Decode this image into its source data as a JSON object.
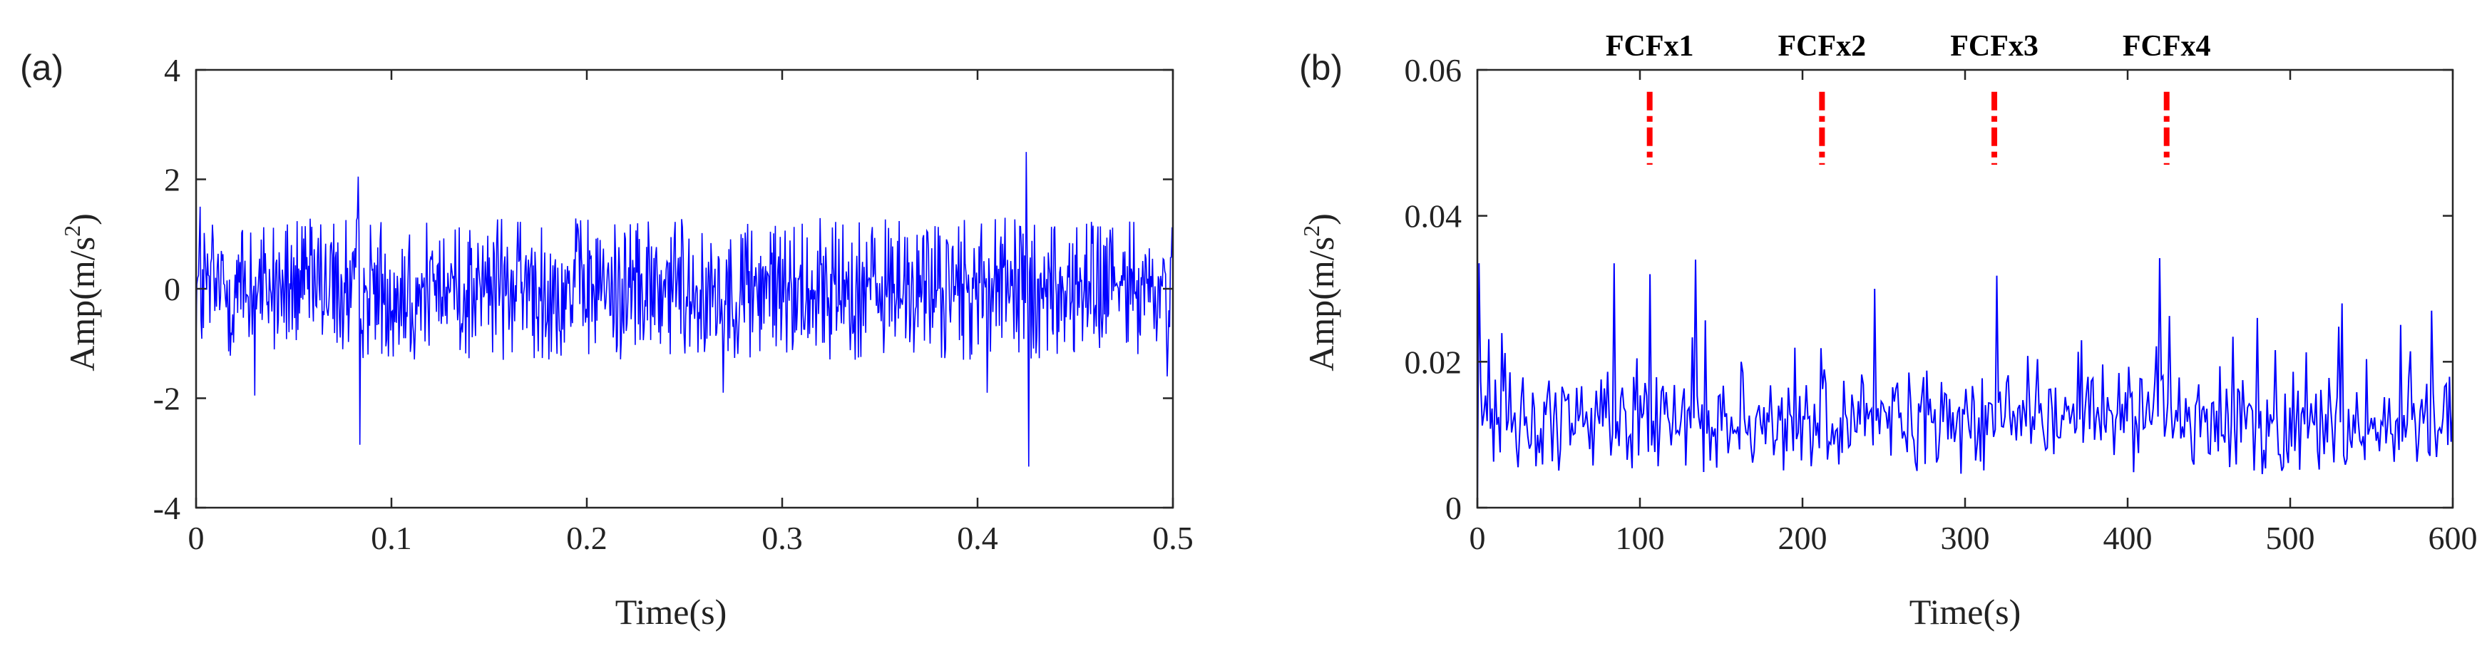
{
  "chart_data": [
    {
      "panel_label": "(a)",
      "type": "line",
      "xlabel": "Time(s)",
      "ylabel_main": "Amp(m/s",
      "ylabel_sup": "2",
      "ylabel_close": ")",
      "xlim": [
        0,
        0.5
      ],
      "ylim": [
        -4,
        4
      ],
      "xticks": [
        0,
        0.1,
        0.2,
        0.3,
        0.4,
        0.5
      ],
      "xtick_labels": [
        "0",
        "0.1",
        "0.2",
        "0.3",
        "0.4",
        "0.5"
      ],
      "yticks": [
        -4,
        -2,
        0,
        2,
        4
      ],
      "ytick_labels": [
        "-4",
        "-2",
        "0",
        "2",
        "4"
      ],
      "grid": false,
      "line_color": "#0000ff",
      "signal": {
        "description_kind": "vibration-acceleration",
        "n_points": 1200,
        "typical_range": [
          -1.3,
          1.3
        ],
        "spikes": [
          {
            "x": 0.083,
            "y": 2.05
          },
          {
            "x": 0.084,
            "y": -2.85
          },
          {
            "x": 0.425,
            "y": 2.5
          },
          {
            "x": 0.426,
            "y": -3.25
          },
          {
            "x": 0.002,
            "y": 1.5
          },
          {
            "x": 0.03,
            "y": -1.95
          },
          {
            "x": 0.27,
            "y": -1.9
          },
          {
            "x": 0.405,
            "y": -1.9
          },
          {
            "x": 0.497,
            "y": -1.6
          }
        ]
      }
    },
    {
      "panel_label": "(b)",
      "type": "line",
      "xlabel": "Time(s)",
      "ylabel_main": "Amp(m/s",
      "ylabel_sup": "2",
      "ylabel_close": ")",
      "xlim": [
        0,
        600
      ],
      "ylim": [
        0,
        0.06
      ],
      "xticks": [
        0,
        100,
        200,
        300,
        400,
        500,
        600
      ],
      "xtick_labels": [
        "0",
        "100",
        "200",
        "300",
        "400",
        "500",
        "600"
      ],
      "yticks": [
        0,
        0.02,
        0.04,
        0.06
      ],
      "ytick_labels": [
        "0",
        "0.02",
        "0.04",
        "0.06"
      ],
      "grid": false,
      "line_color": "#0000ff",
      "marker_color": "#ff0000",
      "markers": [
        {
          "label": "FCFx1",
          "x": 106,
          "y_range": [
            0.047,
            0.057
          ]
        },
        {
          "label": "FCFx2",
          "x": 212,
          "y_range": [
            0.047,
            0.057
          ]
        },
        {
          "label": "FCFx3",
          "x": 318,
          "y_range": [
            0.047,
            0.057
          ]
        },
        {
          "label": "FCFx4",
          "x": 424,
          "y_range": [
            0.047,
            0.057
          ]
        }
      ],
      "signal": {
        "n_points": 600,
        "typical_range": [
          0.004,
          0.02
        ],
        "peaks": [
          {
            "x": 1,
            "y": 0.0335
          },
          {
            "x": 84,
            "y": 0.0335
          },
          {
            "x": 106,
            "y": 0.032
          },
          {
            "x": 134,
            "y": 0.034
          },
          {
            "x": 244,
            "y": 0.03
          },
          {
            "x": 320,
            "y": 0.0318
          },
          {
            "x": 420,
            "y": 0.0342
          },
          {
            "x": 480,
            "y": 0.026
          },
          {
            "x": 532,
            "y": 0.028
          },
          {
            "x": 587,
            "y": 0.027
          }
        ]
      }
    }
  ]
}
